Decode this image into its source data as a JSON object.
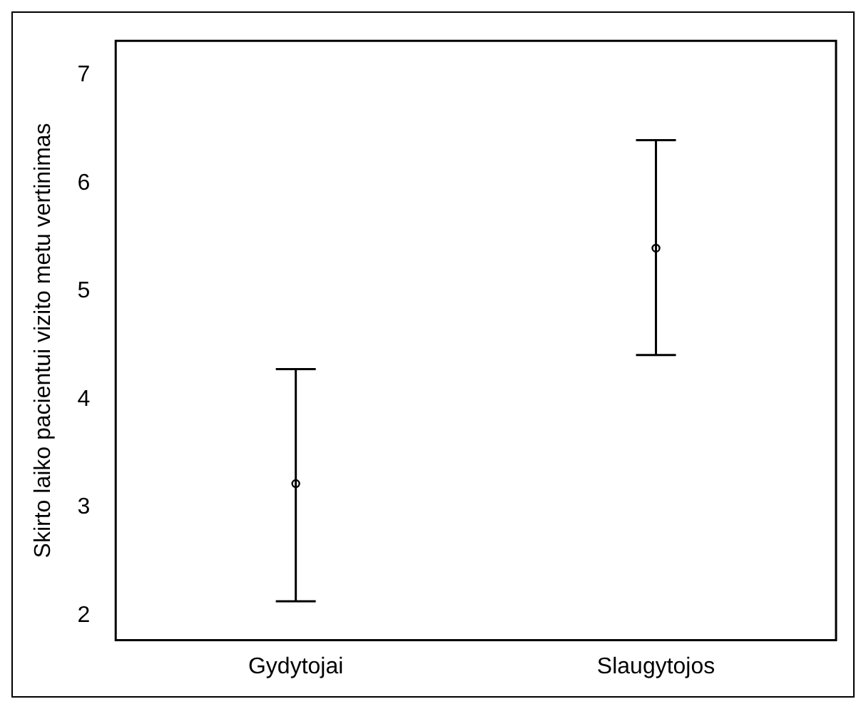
{
  "chart_data": {
    "type": "scatter",
    "ylabel": "Skirto laiko pacientui vizito metu vertinimas",
    "categories": [
      "Gydytojai",
      "Slaugytojos"
    ],
    "values": [
      3.22,
      5.4
    ],
    "errors": [
      [
        2.13,
        4.28
      ],
      [
        4.41,
        6.4
      ]
    ],
    "color": "#000000",
    "ylim": [
      1.77,
      7.32
    ],
    "yticks": [
      2,
      3,
      4,
      5,
      6,
      7
    ],
    "grid": false,
    "legend": false,
    "marker": "circle"
  }
}
